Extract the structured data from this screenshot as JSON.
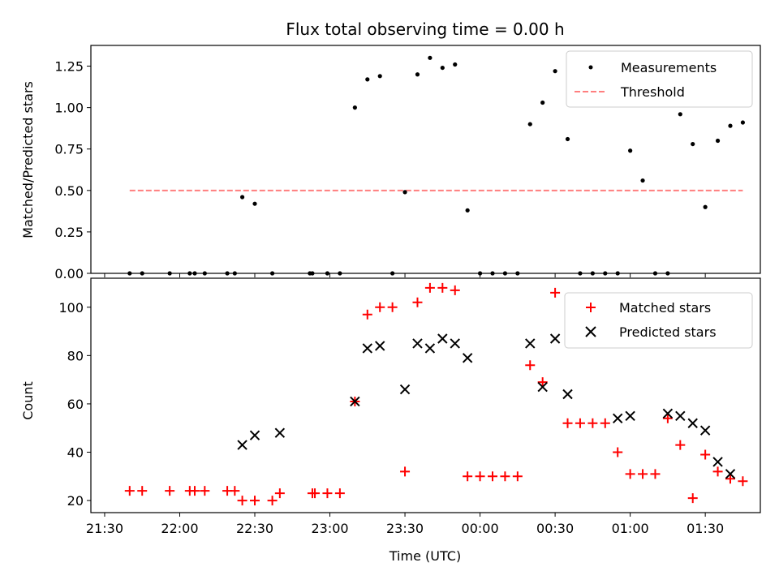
{
  "title": "Flux total observing time = 0.00 h",
  "chart_data": [
    {
      "type": "scatter",
      "ylabel": "Matched/Predicted stars",
      "ylim": [
        0,
        1.375
      ],
      "yticks": [
        "0.00",
        "0.25",
        "0.50",
        "0.75",
        "1.00",
        "1.25"
      ],
      "xlim": [
        -5.5,
        262
      ],
      "legend": [
        "Measurements",
        "Threshold"
      ],
      "legend_position": "top-right",
      "colors": {
        "measurements": "#000000",
        "threshold": "#ff7f7f"
      },
      "threshold": {
        "value": 0.5,
        "x_start": 10,
        "x_end": 255
      },
      "series": [
        {
          "name": "Measurements",
          "x": [
            10,
            15,
            26,
            34,
            36,
            40,
            49,
            52,
            55,
            60,
            67,
            82,
            83,
            89,
            94,
            100,
            105,
            110,
            115,
            120,
            125,
            130,
            135,
            140,
            145,
            150,
            155,
            160,
            165,
            170,
            175,
            180,
            185,
            190,
            195,
            200,
            205,
            210,
            215,
            220,
            225,
            230,
            235,
            240,
            245,
            250,
            255
          ],
          "y": [
            0,
            0,
            0,
            0,
            0,
            0,
            0,
            0,
            0.46,
            0.42,
            0,
            0,
            0,
            0,
            0,
            1.0,
            1.17,
            1.19,
            0,
            0.49,
            1.2,
            1.3,
            1.24,
            1.26,
            0.38,
            0,
            0,
            0,
            0,
            0.9,
            1.03,
            1.22,
            0.81,
            0,
            0,
            0,
            0,
            0.74,
            0.56,
            0,
            0,
            0.96,
            0.78,
            0.4,
            0.8,
            0.89,
            0.91
          ]
        }
      ]
    },
    {
      "type": "scatter",
      "ylabel": "Count",
      "xlabel": "Time (UTC)",
      "ylim": [
        15,
        112
      ],
      "yticks": [
        "20",
        "40",
        "60",
        "80",
        "100"
      ],
      "xlim": [
        -5.5,
        262
      ],
      "xticks": [
        {
          "v": 0,
          "label": "21:30"
        },
        {
          "v": 30,
          "label": "22:00"
        },
        {
          "v": 60,
          "label": "22:30"
        },
        {
          "v": 90,
          "label": "23:00"
        },
        {
          "v": 120,
          "label": "23:30"
        },
        {
          "v": 150,
          "label": "00:00"
        },
        {
          "v": 180,
          "label": "00:30"
        },
        {
          "v": 210,
          "label": "01:00"
        },
        {
          "v": 240,
          "label": "01:30"
        }
      ],
      "legend": [
        "Matched stars",
        "Predicted stars"
      ],
      "legend_position": "top-right",
      "colors": {
        "matched": "#ff0000",
        "predicted": "#000000"
      },
      "series": [
        {
          "name": "Matched stars",
          "x": [
            10,
            15,
            26,
            34,
            36,
            40,
            49,
            52,
            55,
            60,
            67,
            70,
            83,
            84,
            89,
            94,
            100,
            105,
            110,
            115,
            120,
            125,
            130,
            135,
            140,
            145,
            150,
            155,
            160,
            165,
            170,
            175,
            180,
            185,
            190,
            195,
            200,
            205,
            210,
            215,
            220,
            225,
            230,
            235,
            240,
            245,
            250,
            255
          ],
          "y": [
            24,
            24,
            24,
            24,
            24,
            24,
            24,
            24,
            20,
            20,
            20,
            23,
            23,
            23,
            23,
            23,
            61,
            97,
            100,
            100,
            32,
            102,
            108,
            108,
            107,
            30,
            30,
            30,
            30,
            30,
            76,
            69,
            106,
            52,
            52,
            52,
            52,
            40,
            31,
            31,
            31,
            54,
            43,
            21,
            39,
            32,
            29,
            28
          ]
        },
        {
          "name": "Predicted stars",
          "x": [
            55,
            60,
            70,
            100,
            105,
            110,
            120,
            125,
            130,
            135,
            140,
            145,
            170,
            175,
            180,
            185,
            205,
            210,
            225,
            230,
            235,
            240,
            245,
            250
          ],
          "y": [
            43,
            47,
            48,
            61,
            83,
            84,
            66,
            85,
            83,
            87,
            85,
            79,
            85,
            67,
            87,
            64,
            54,
            55,
            56,
            55,
            52,
            49,
            36,
            31
          ]
        }
      ]
    }
  ]
}
